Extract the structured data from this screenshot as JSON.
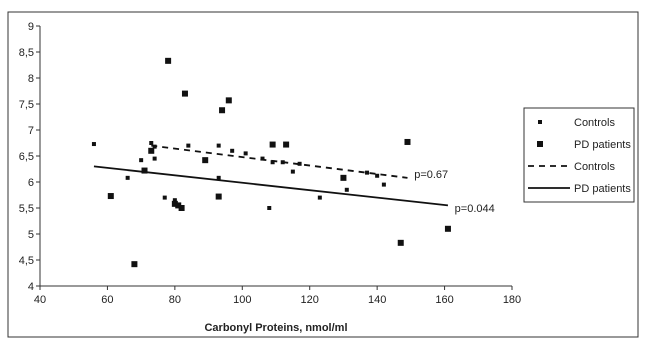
{
  "chart_data": {
    "type": "scatter",
    "title": "",
    "xlabel": "Carbonyl Proteins, nmol/ml",
    "ylabel": "",
    "xlim": [
      40,
      180
    ],
    "ylim": [
      4,
      9
    ],
    "x_ticks": [
      "40",
      "60",
      "80",
      "100",
      "120",
      "140",
      "160",
      "180"
    ],
    "y_ticks": [
      "4",
      "4,5",
      "5",
      "5,5",
      "6",
      "6,5",
      "7",
      "7,5",
      "8",
      "8,5",
      "9"
    ],
    "grid": false,
    "legend_position": "right",
    "series": [
      {
        "name": "Controls",
        "kind": "scatter",
        "marker": "small-square",
        "color": "#111111",
        "points": [
          [
            56,
            6.73
          ],
          [
            66,
            6.08
          ],
          [
            70,
            6.42
          ],
          [
            73,
            6.75
          ],
          [
            74,
            6.68
          ],
          [
            74,
            6.45
          ],
          [
            77,
            5.7
          ],
          [
            80,
            5.65
          ],
          [
            84,
            6.7
          ],
          [
            89,
            6.42
          ],
          [
            93,
            6.08
          ],
          [
            93,
            6.7
          ],
          [
            97,
            6.6
          ],
          [
            101,
            6.55
          ],
          [
            106,
            6.45
          ],
          [
            109,
            6.38
          ],
          [
            108,
            5.5
          ],
          [
            112,
            6.38
          ],
          [
            115,
            6.2
          ],
          [
            117,
            6.35
          ],
          [
            123,
            5.7
          ],
          [
            131,
            5.85
          ],
          [
            137,
            6.18
          ],
          [
            140,
            6.12
          ],
          [
            142,
            5.95
          ]
        ]
      },
      {
        "name": "PD patients",
        "kind": "scatter",
        "marker": "large-square",
        "color": "#111111",
        "points": [
          [
            61,
            5.73
          ],
          [
            68,
            4.42
          ],
          [
            71,
            6.22
          ],
          [
            73,
            6.6
          ],
          [
            78,
            8.33
          ],
          [
            80,
            5.58
          ],
          [
            81,
            5.55
          ],
          [
            82,
            5.5
          ],
          [
            83,
            7.7
          ],
          [
            89,
            6.42
          ],
          [
            93,
            5.72
          ],
          [
            94,
            7.38
          ],
          [
            96,
            7.57
          ],
          [
            109,
            6.72
          ],
          [
            113,
            6.72
          ],
          [
            130,
            6.08
          ],
          [
            147,
            4.83
          ],
          [
            149,
            6.77
          ],
          [
            161,
            5.1
          ]
        ]
      },
      {
        "name": "Controls",
        "kind": "trendline",
        "style": "dashed",
        "color": "#111111",
        "x": [
          73,
          149
        ],
        "y": [
          6.7,
          6.08
        ]
      },
      {
        "name": "PD patients",
        "kind": "trendline",
        "style": "solid",
        "color": "#111111",
        "x": [
          56,
          161
        ],
        "y": [
          6.3,
          5.55
        ]
      }
    ],
    "annotations": [
      {
        "text": "p=0.67",
        "x": 151,
        "y": 6.15
      },
      {
        "text": "p=0.044",
        "x": 163,
        "y": 5.5
      }
    ],
    "legend": [
      {
        "label": "Controls",
        "symbol": "small-square"
      },
      {
        "label": "PD patients",
        "symbol": "large-square"
      },
      {
        "label": "Controls",
        "symbol": "dashed-line"
      },
      {
        "label": "PD patients",
        "symbol": "solid-line"
      }
    ]
  }
}
